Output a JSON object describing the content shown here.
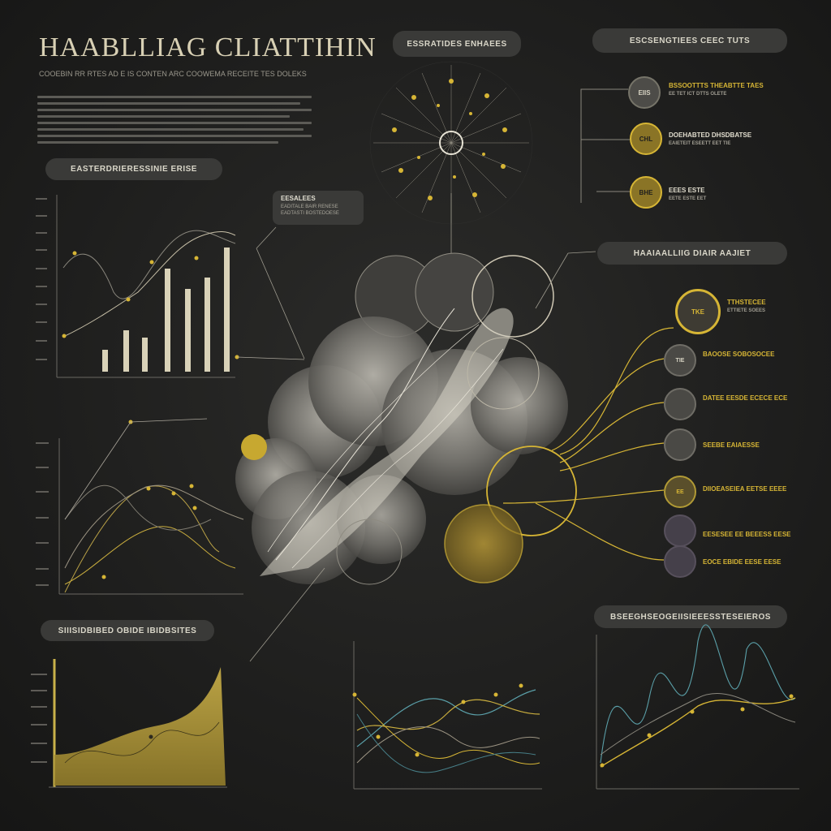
{
  "page": {
    "title": "HAABLLIAG CLIATTIHIN",
    "subtitle": "COOEBIN RR RTES AD E IS CONTEN ARC COOWEMA RECEITE TES DOLEKS"
  },
  "headers": {
    "top_center": "ESSRATIDES ENHAEES",
    "top_right": "ESCSENGTIEES CEEC TUTS",
    "left_chart": "EASTERDRIERESSINIE ERISE",
    "middle_right": "HAAIAALLIIG DIAIR AAJIET",
    "bottom_left": "SIIISIDBIBED OBIDE IBIDBSITES",
    "bottom_right": "BSEEGHSEOGEIISIEEESSTESEIEROS"
  },
  "callout": {
    "title": "EESALEES",
    "lines": [
      "EADITALE BAIR RENESE",
      "EADTASTI BOSTEDOESE"
    ]
  },
  "top_right_items": [
    {
      "badge": "EIIS",
      "label": "BSSOOTTTS THEABTTE TAES",
      "sub": "EE TET ICT DTTS OLETE"
    },
    {
      "badge": "CHL",
      "label": "DOEHABTED DHSDBATSE",
      "sub": "EAIETEIT ESEETT EET TIE"
    },
    {
      "badge": "BHE",
      "label": "EEES ESTE",
      "sub": "EETE ESTE EET"
    }
  ],
  "right_items": [
    {
      "badge": "TKE",
      "label": "TTHSTECEE",
      "sub": "ETTIETE SOEES",
      "accent": "#d6b535"
    },
    {
      "badge": "TIE",
      "label": "BAOOSE SOBOSOCEE",
      "sub": "",
      "accent": "#55524b"
    },
    {
      "badge": "",
      "label": "DATEE EESDE ECECE ECE",
      "sub": "",
      "accent": "#55524b"
    },
    {
      "badge": "",
      "label": "SEEBE EAIAESSE",
      "sub": "",
      "accent": "#55524b"
    },
    {
      "badge": "EE",
      "label": "DIIOEASEIEA EETSE EEEE",
      "sub": "",
      "accent": "#b19a35"
    },
    {
      "badge": "",
      "label": "EESESEE EE BEEESS EESE",
      "sub": "",
      "accent": "#48404a"
    },
    {
      "badge": "",
      "label": "EOCE EBIDE EESE EESE",
      "sub": "",
      "accent": "#48404a"
    }
  ],
  "colors": {
    "accent": "#d6b535",
    "bg": "#222221",
    "panel": "#3a3a38",
    "line_light": "#cfc8b4",
    "teal": "#5a9fa8"
  }
}
